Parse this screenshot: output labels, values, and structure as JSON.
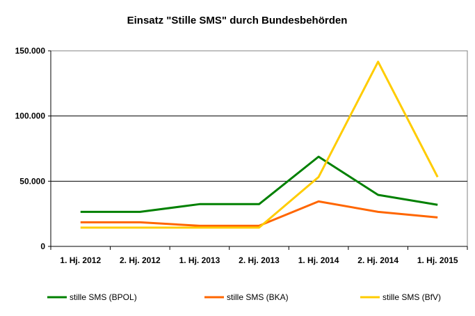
{
  "chart_data": {
    "type": "line",
    "title": "Einsatz \"Stille SMS\" durch Bundesbehörden",
    "xlabel": "",
    "ylabel": "",
    "ylim": [
      0,
      150000
    ],
    "yticks": [
      0,
      50000,
      100000,
      150000
    ],
    "ytick_labels": [
      "0",
      "50.000",
      "100.000",
      "150.000"
    ],
    "grid": true,
    "legend_position": "bottom",
    "categories": [
      "1. Hj. 2012",
      "2. Hj. 2012",
      "1. Hj. 2013",
      "2. Hj. 2013",
      "1. Hj. 2014",
      "2. Hj. 2014",
      "1. Hj. 2015"
    ],
    "series": [
      {
        "name": "stille SMS (BPOL)",
        "color": "#008000",
        "values": [
          26500,
          26500,
          32400,
          32400,
          68800,
          39500,
          31900
        ]
      },
      {
        "name": "stille SMS (BKA)",
        "color": "#FF6600",
        "values": [
          18500,
          18500,
          15800,
          15800,
          34500,
          26500,
          22200
        ]
      },
      {
        "name": "stille SMS (BfV)",
        "color": "#FFCC00",
        "values": [
          14400,
          14400,
          14400,
          14400,
          53200,
          141600,
          53200
        ]
      }
    ]
  }
}
